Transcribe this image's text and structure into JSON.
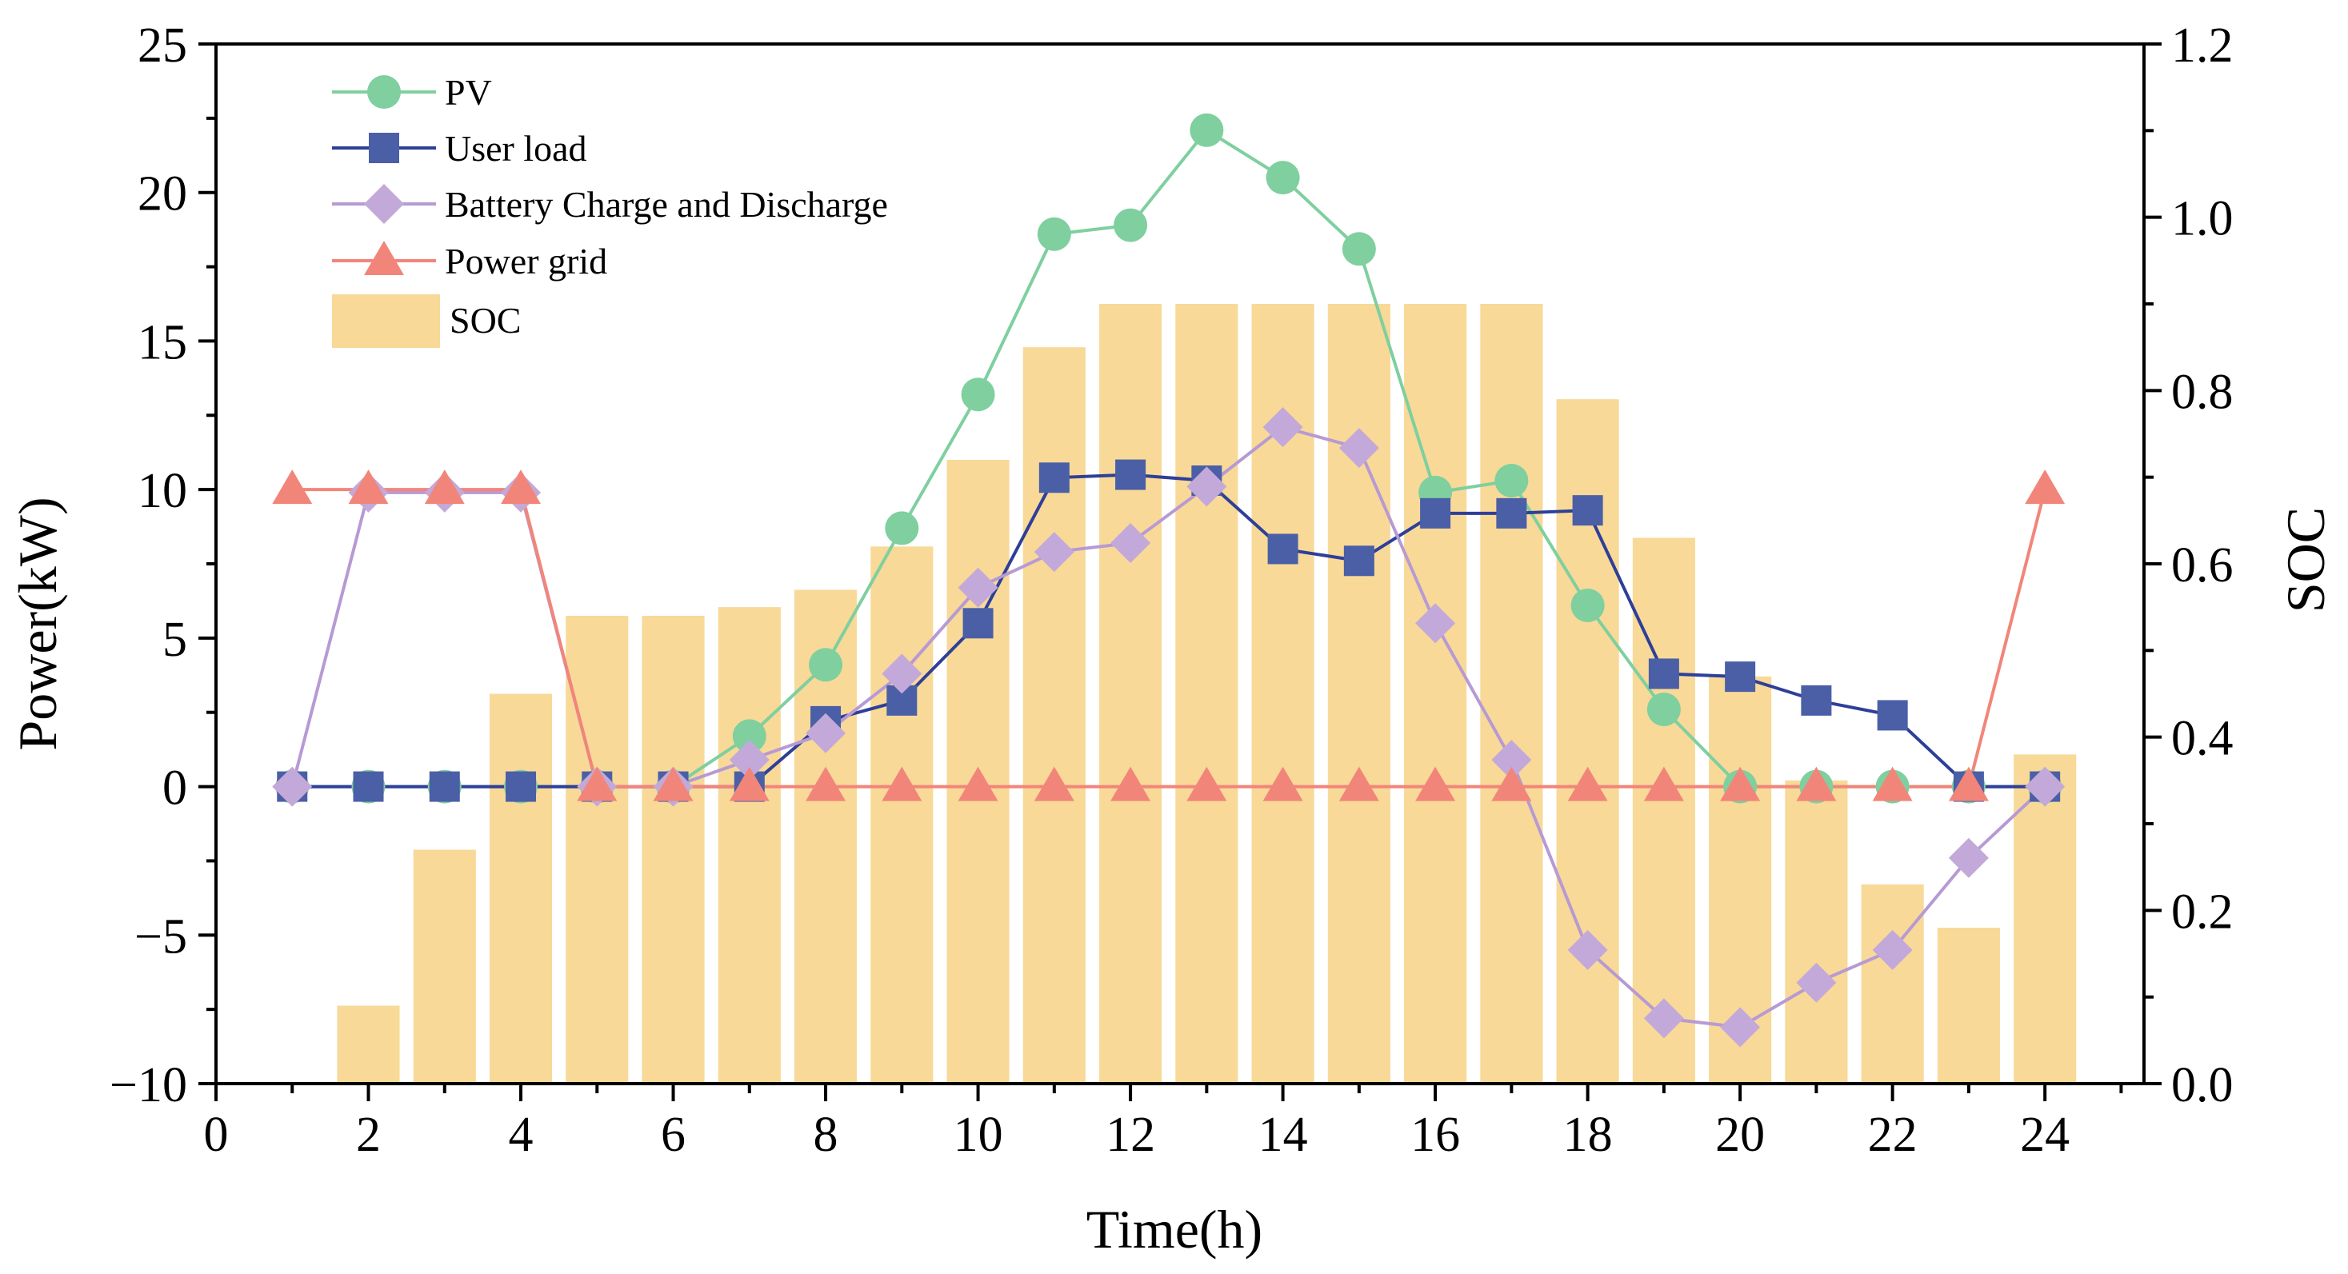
{
  "chart_data": {
    "type": "bar+line",
    "x": [
      1,
      2,
      3,
      4,
      5,
      6,
      7,
      8,
      9,
      10,
      11,
      12,
      13,
      14,
      15,
      16,
      17,
      18,
      19,
      20,
      21,
      22,
      23,
      24
    ],
    "xlabel": "Time(h)",
    "ylabel": "Power(kW)",
    "y2label": "SOC",
    "xlim": [
      0,
      25.3
    ],
    "ylim": [
      -10,
      25
    ],
    "y2lim": [
      0.0,
      1.2
    ],
    "xticks": [
      0,
      2,
      4,
      6,
      8,
      10,
      12,
      14,
      16,
      18,
      20,
      22,
      24
    ],
    "xtick_labels": [
      "0",
      "2",
      "4",
      "6",
      "8",
      "10",
      "12",
      "14",
      "16",
      "18",
      "20",
      "22",
      "24"
    ],
    "yticks": [
      -10,
      -5,
      0,
      5,
      10,
      15,
      20,
      25
    ],
    "ytick_labels": [
      "−10",
      "−5",
      "0",
      "5",
      "10",
      "15",
      "20",
      "25"
    ],
    "y2ticks": [
      0.0,
      0.2,
      0.4,
      0.6,
      0.8,
      1.0,
      1.2
    ],
    "y2tick_labels": [
      "0.0",
      "0.2",
      "0.4",
      "0.6",
      "0.8",
      "1.0",
      "1.2"
    ],
    "grid": false,
    "legend_position": "top-left",
    "bars": {
      "name": "SOC",
      "axis": "right",
      "color": "#f8d998",
      "x": [
        2,
        3,
        4,
        5,
        6,
        7,
        8,
        9,
        10,
        11,
        12,
        13,
        14,
        15,
        16,
        17,
        18,
        19,
        20,
        21,
        22,
        23,
        24
      ],
      "values": [
        0.09,
        0.27,
        0.45,
        0.54,
        0.54,
        0.55,
        0.57,
        0.62,
        0.72,
        0.85,
        0.9,
        0.9,
        0.9,
        0.9,
        0.9,
        0.9,
        0.79,
        0.63,
        0.47,
        0.35,
        0.23,
        0.18,
        0.38
      ]
    },
    "series": [
      {
        "name": "PV",
        "marker": "circle",
        "color": "#7fcf9f",
        "line_color": "#7fcf9f",
        "values": [
          0,
          0,
          0,
          0,
          0,
          0,
          1.7,
          4.1,
          8.7,
          13.2,
          18.6,
          18.9,
          22.1,
          20.5,
          18.1,
          9.9,
          10.3,
          6.1,
          2.6,
          0,
          0,
          0,
          0,
          0
        ]
      },
      {
        "name": "User load",
        "marker": "square",
        "color": "#4a5fa6",
        "line_color": "#2e3f99",
        "values": [
          0,
          0,
          0,
          0,
          0,
          0,
          0,
          2.2,
          2.9,
          5.5,
          10.4,
          10.5,
          10.3,
          8.0,
          7.6,
          9.2,
          9.2,
          9.3,
          3.8,
          3.7,
          2.9,
          2.4,
          0,
          0
        ]
      },
      {
        "name": "Battery Charge and Discharge",
        "marker": "diamond",
        "color": "#c3a9d9",
        "line_color": "#b79ad3",
        "values": [
          0,
          9.9,
          9.9,
          9.9,
          0,
          0,
          0.9,
          1.8,
          3.8,
          6.7,
          7.9,
          8.2,
          10.1,
          12.1,
          11.4,
          5.5,
          0.9,
          -5.5,
          -7.8,
          -8.1,
          -6.6,
          -5.5,
          -2.4,
          0
        ]
      },
      {
        "name": "Power grid",
        "marker": "triangle",
        "color": "#f2857a",
        "line_color": "#f2857a",
        "values": [
          10,
          10,
          10,
          10,
          0,
          0,
          0,
          0,
          0,
          0,
          0,
          0,
          0,
          0,
          0,
          0,
          0,
          0,
          0,
          0,
          0,
          0,
          0,
          10
        ]
      }
    ]
  }
}
